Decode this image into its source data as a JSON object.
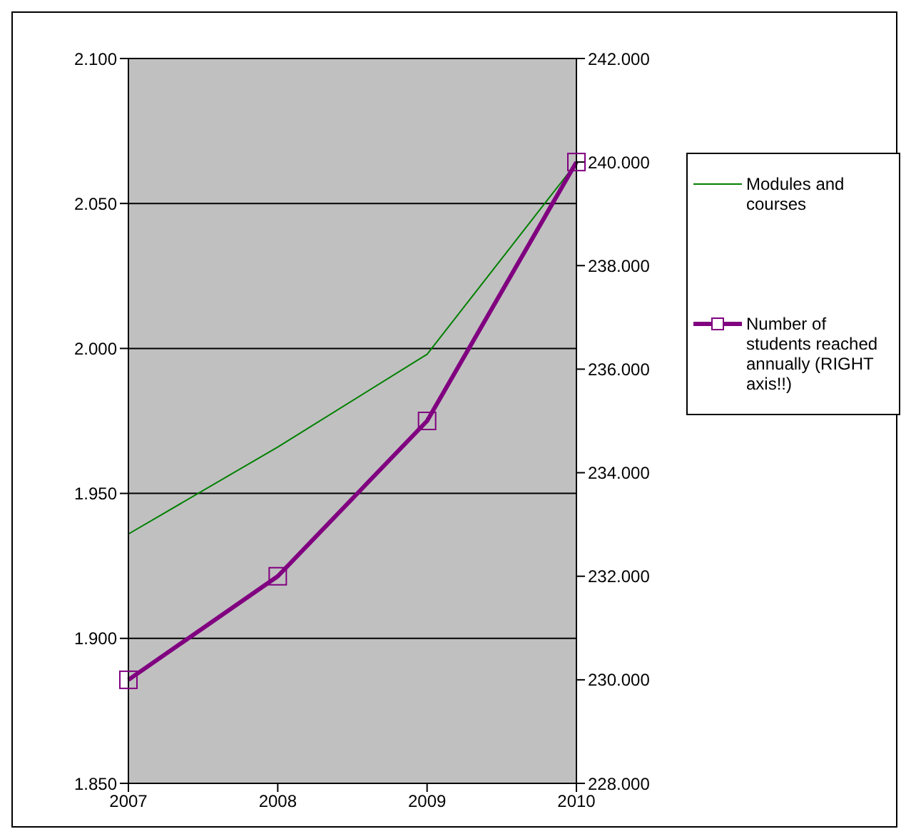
{
  "chart_data": {
    "type": "line",
    "categories": [
      "2007",
      "2008",
      "2009",
      "2010"
    ],
    "series": [
      {
        "name": "Modules and courses",
        "color": "#008000",
        "values": [
          1936,
          1966,
          1998,
          2064
        ],
        "marker": "none"
      },
      {
        "name": "Number of students reached annually (RIGHT axis!!)",
        "color": "#800080",
        "values": [
          230000,
          232000,
          235000,
          240000
        ],
        "axis": "y2",
        "marker": "square"
      }
    ],
    "ylim": [
      1850,
      2100
    ],
    "yticks": [
      {
        "value": 1850,
        "label": "1.850"
      },
      {
        "value": 1900,
        "label": "1.900"
      },
      {
        "value": 1950,
        "label": "1.950"
      },
      {
        "value": 2000,
        "label": "2.000"
      },
      {
        "value": 2050,
        "label": "2.050"
      },
      {
        "value": 2100,
        "label": "2.100"
      }
    ],
    "y2lim": [
      228000,
      242000
    ],
    "y2ticks": [
      {
        "value": 228000,
        "label": "228.000"
      },
      {
        "value": 230000,
        "label": "230.000"
      },
      {
        "value": 232000,
        "label": "232.000"
      },
      {
        "value": 234000,
        "label": "234.000"
      },
      {
        "value": 236000,
        "label": "236.000"
      },
      {
        "value": 238000,
        "label": "238.000"
      },
      {
        "value": 240000,
        "label": "240.000"
      },
      {
        "value": 242000,
        "label": "242.000"
      }
    ],
    "grid": "y",
    "legend": "right"
  }
}
